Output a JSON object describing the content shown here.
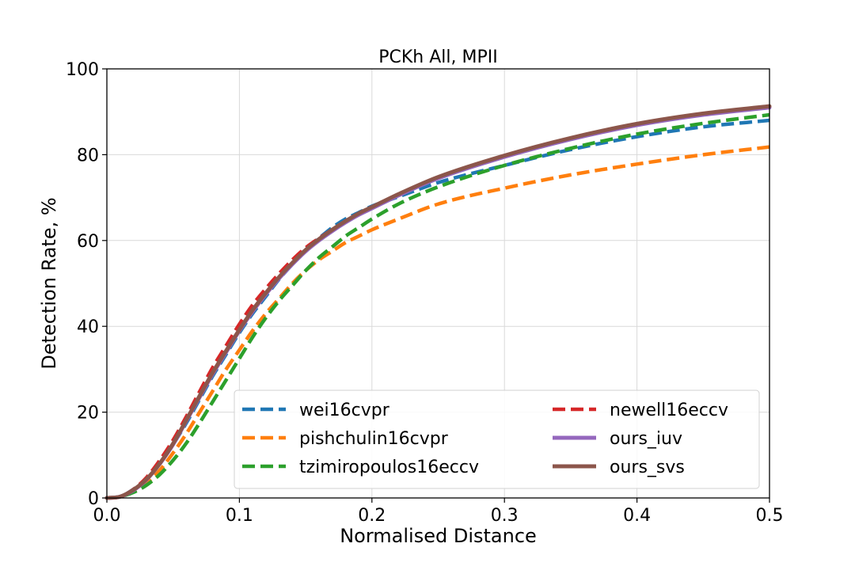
{
  "chart_data": {
    "type": "line",
    "title": "PCKh All, MPII",
    "xlabel": "Normalised Distance",
    "ylabel": "Detection Rate, %",
    "xlim": [
      0.0,
      0.5
    ],
    "ylim": [
      0,
      100
    ],
    "xticks": [
      "0.0",
      "0.1",
      "0.2",
      "0.3",
      "0.4",
      "0.5"
    ],
    "yticks": [
      "0",
      "20",
      "40",
      "60",
      "80",
      "100"
    ],
    "grid": true,
    "legend_position": "lower-right",
    "x": [
      0.0,
      0.01,
      0.02,
      0.03,
      0.04,
      0.05,
      0.06,
      0.07,
      0.08,
      0.09,
      0.1,
      0.11,
      0.12,
      0.13,
      0.14,
      0.15,
      0.16,
      0.17,
      0.18,
      0.19,
      0.2,
      0.22,
      0.25,
      0.3,
      0.35,
      0.4,
      0.45,
      0.5
    ],
    "series": [
      {
        "name": "wei16cvpr",
        "color": "#1f77b4",
        "style": "dashed",
        "values": [
          0,
          0.3,
          2,
          4.5,
          8,
          12.5,
          17.5,
          23,
          28.5,
          33.5,
          38.5,
          43,
          47,
          51,
          54.5,
          58,
          60.5,
          63,
          65,
          66.5,
          68,
          70.2,
          73.5,
          77.5,
          81.2,
          84.2,
          86.5,
          88
        ]
      },
      {
        "name": "pishchulin16cvpr",
        "color": "#ff7f0e",
        "style": "dashed",
        "values": [
          0,
          0.3,
          1.5,
          3.5,
          6.5,
          10.5,
          15,
          20,
          25,
          30,
          34.5,
          39,
          43,
          46.5,
          50,
          53,
          55.5,
          57.5,
          59.5,
          61,
          62.5,
          65,
          68.5,
          72.2,
          75.3,
          77.8,
          80,
          81.8
        ]
      },
      {
        "name": "tzimiropoulos16eccv",
        "color": "#2ca02c",
        "style": "dashed",
        "values": [
          0,
          0.3,
          1.3,
          3,
          5.5,
          8.8,
          12.8,
          17.5,
          22.5,
          27.5,
          32.5,
          37.5,
          42,
          46,
          49.5,
          53,
          56,
          58.5,
          61,
          63,
          65,
          68.5,
          72.5,
          77.5,
          81.5,
          84.8,
          87.3,
          89.3
        ]
      },
      {
        "name": "newell16eccv",
        "color": "#d62728",
        "style": "dashed",
        "values": [
          0,
          0.3,
          2,
          4.8,
          8.8,
          13.5,
          19,
          24.8,
          30.5,
          35.5,
          40.5,
          45,
          48.8,
          52.3,
          55.5,
          58.3,
          60.5,
          62.5,
          64.3,
          66,
          67.5,
          70.5,
          74.5,
          79.5,
          83.7,
          87,
          89.5,
          91.2
        ]
      },
      {
        "name": "ours_iuv",
        "color": "#9467bd",
        "style": "solid",
        "values": [
          0,
          0.3,
          1.8,
          4.3,
          8,
          12.5,
          18,
          23.5,
          29,
          34,
          39,
          43.5,
          47.5,
          51.2,
          54.5,
          57.5,
          60,
          62.2,
          64.2,
          66,
          67.5,
          70.5,
          74.5,
          79.5,
          83.6,
          86.9,
          89.3,
          91
        ]
      },
      {
        "name": "ours_svs",
        "color": "#8c564b",
        "style": "solid",
        "values": [
          0,
          0.3,
          1.9,
          4.4,
          8.1,
          12.7,
          18.2,
          23.8,
          29.3,
          34.3,
          39.2,
          43.8,
          47.8,
          51.5,
          54.8,
          57.8,
          60.3,
          62.5,
          64.5,
          66.3,
          67.8,
          70.8,
          74.8,
          79.8,
          83.9,
          87.2,
          89.6,
          91.3
        ]
      }
    ]
  }
}
